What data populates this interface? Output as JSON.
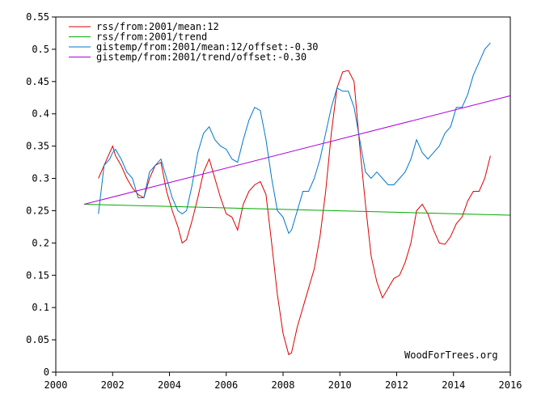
{
  "colors": {
    "rss_mean": "#dd0000",
    "rss_trend": "#00aa00",
    "gistemp_mean": "#0077cc",
    "gistemp_trend": "#aa00dd",
    "axis": "#000000",
    "background": "#ffffff"
  },
  "watermark": "WoodForTrees.org",
  "chart_data": {
    "type": "line",
    "title": "",
    "xlabel": "",
    "ylabel": "",
    "xlim": [
      2000,
      2016
    ],
    "ylim": [
      0,
      0.55
    ],
    "grid": false,
    "legend_position": "top-left",
    "x_ticks": [
      "2000",
      "2002",
      "2004",
      "2006",
      "2008",
      "2010",
      "2012",
      "2014",
      "2016"
    ],
    "y_ticks": [
      "0",
      "0.05",
      "0.1",
      "0.15",
      "0.2",
      "0.25",
      "0.3",
      "0.35",
      "0.4",
      "0.45",
      "0.5",
      "0.55"
    ],
    "series": [
      {
        "name": "rss/from:2001/mean:12",
        "color": "#dd0000",
        "x": [
          2001.5,
          2001.7,
          2001.9,
          2002.0,
          2002.1,
          2002.3,
          2002.5,
          2002.7,
          2002.9,
          2003.1,
          2003.3,
          2003.5,
          2003.7,
          2003.9,
          2004.1,
          2004.3,
          2004.45,
          2004.6,
          2004.8,
          2005.0,
          2005.2,
          2005.4,
          2005.6,
          2005.8,
          2006.0,
          2006.2,
          2006.4,
          2006.6,
          2006.8,
          2007.0,
          2007.2,
          2007.4,
          2007.6,
          2007.8,
          2008.0,
          2008.2,
          2008.3,
          2008.5,
          2008.7,
          2008.9,
          2009.1,
          2009.3,
          2009.5,
          2009.7,
          2009.9,
          2010.1,
          2010.3,
          2010.5,
          2010.7,
          2010.9,
          2011.1,
          2011.3,
          2011.5,
          2011.7,
          2011.9,
          2012.1,
          2012.3,
          2012.5,
          2012.7,
          2012.9,
          2013.1,
          2013.3,
          2013.5,
          2013.7,
          2013.9,
          2014.1,
          2014.3,
          2014.5,
          2014.7,
          2014.9,
          2015.1,
          2015.3
        ],
        "y": [
          0.3,
          0.32,
          0.34,
          0.35,
          0.335,
          0.32,
          0.3,
          0.285,
          0.275,
          0.27,
          0.3,
          0.32,
          0.325,
          0.28,
          0.25,
          0.225,
          0.2,
          0.205,
          0.235,
          0.27,
          0.31,
          0.33,
          0.3,
          0.27,
          0.245,
          0.24,
          0.22,
          0.26,
          0.28,
          0.29,
          0.295,
          0.275,
          0.2,
          0.12,
          0.06,
          0.027,
          0.03,
          0.07,
          0.1,
          0.13,
          0.16,
          0.21,
          0.28,
          0.37,
          0.44,
          0.465,
          0.467,
          0.45,
          0.35,
          0.26,
          0.18,
          0.14,
          0.115,
          0.13,
          0.145,
          0.15,
          0.17,
          0.2,
          0.25,
          0.26,
          0.245,
          0.22,
          0.2,
          0.198,
          0.21,
          0.23,
          0.24,
          0.265,
          0.28,
          0.28,
          0.3,
          0.335
        ]
      },
      {
        "name": "rss/from:2001/trend",
        "color": "#00aa00",
        "x": [
          2001.0,
          2016.0
        ],
        "y": [
          0.26,
          0.243
        ]
      },
      {
        "name": "gistemp/from:2001/mean:12/offset:-0.30",
        "color": "#0077cc",
        "x": [
          2001.5,
          2001.7,
          2001.9,
          2002.0,
          2002.1,
          2002.3,
          2002.5,
          2002.7,
          2002.9,
          2003.1,
          2003.3,
          2003.5,
          2003.7,
          2003.9,
          2004.1,
          2004.3,
          2004.45,
          2004.6,
          2004.8,
          2005.0,
          2005.2,
          2005.4,
          2005.6,
          2005.8,
          2006.0,
          2006.2,
          2006.4,
          2006.6,
          2006.8,
          2007.0,
          2007.2,
          2007.4,
          2007.6,
          2007.8,
          2008.0,
          2008.2,
          2008.3,
          2008.5,
          2008.7,
          2008.9,
          2009.1,
          2009.3,
          2009.5,
          2009.7,
          2009.9,
          2010.1,
          2010.3,
          2010.5,
          2010.7,
          2010.9,
          2011.1,
          2011.3,
          2011.5,
          2011.7,
          2011.9,
          2012.1,
          2012.3,
          2012.5,
          2012.7,
          2012.9,
          2013.1,
          2013.3,
          2013.5,
          2013.7,
          2013.9,
          2014.1,
          2014.3,
          2014.5,
          2014.7,
          2014.9,
          2015.1,
          2015.3
        ],
        "y": [
          0.245,
          0.32,
          0.33,
          0.34,
          0.345,
          0.33,
          0.31,
          0.3,
          0.27,
          0.27,
          0.31,
          0.32,
          0.33,
          0.3,
          0.27,
          0.25,
          0.245,
          0.25,
          0.29,
          0.34,
          0.37,
          0.38,
          0.36,
          0.35,
          0.345,
          0.33,
          0.325,
          0.36,
          0.39,
          0.41,
          0.405,
          0.36,
          0.3,
          0.25,
          0.24,
          0.215,
          0.22,
          0.25,
          0.28,
          0.28,
          0.3,
          0.33,
          0.37,
          0.41,
          0.44,
          0.435,
          0.435,
          0.41,
          0.36,
          0.31,
          0.3,
          0.31,
          0.3,
          0.29,
          0.29,
          0.3,
          0.31,
          0.33,
          0.36,
          0.34,
          0.33,
          0.34,
          0.35,
          0.37,
          0.38,
          0.41,
          0.41,
          0.43,
          0.46,
          0.48,
          0.5,
          0.51
        ]
      },
      {
        "name": "gistemp/from:2001/trend/offset:-0.30",
        "color": "#aa00dd",
        "x": [
          2001.0,
          2016.0
        ],
        "y": [
          0.26,
          0.428
        ]
      }
    ]
  }
}
